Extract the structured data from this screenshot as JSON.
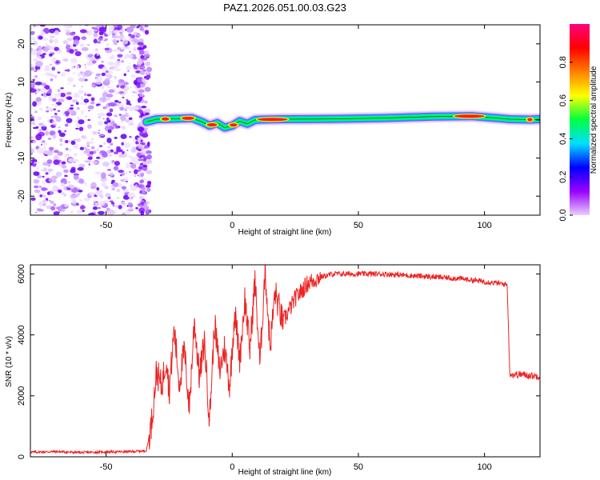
{
  "title": "PAZ1.2026.051.00.03.G23",
  "chart_data": [
    {
      "type": "heatmap",
      "name": "spectrogram",
      "xlabel": "Height of straight line (km)",
      "ylabel": "Frequency (Hz)",
      "xlim": [
        -80,
        122
      ],
      "ylim": [
        -25,
        25
      ],
      "xticks": [
        -50,
        0,
        50,
        100
      ],
      "xtick_labels": [
        "-50",
        "0",
        "50",
        "100"
      ],
      "yticks": [
        -20,
        -10,
        0,
        10,
        20
      ],
      "ytick_labels": [
        "-20",
        "-10",
        "0",
        "10",
        "20"
      ],
      "noise_region_x": [
        -80,
        -34
      ],
      "ridge_path": [
        [
          -34,
          -0.5
        ],
        [
          -30,
          0.2
        ],
        [
          -24,
          0.3
        ],
        [
          -20,
          0.4
        ],
        [
          -16,
          0.5
        ],
        [
          -12,
          -0.5
        ],
        [
          -9,
          -1.5
        ],
        [
          -6,
          -0.8
        ],
        [
          -3,
          -2
        ],
        [
          0,
          -1.5
        ],
        [
          3,
          -0.3
        ],
        [
          6,
          -1
        ],
        [
          9,
          0
        ],
        [
          12,
          0.1
        ],
        [
          20,
          0.2
        ],
        [
          40,
          0.3
        ],
        [
          60,
          0.5
        ],
        [
          80,
          0.9
        ],
        [
          95,
          1.0
        ],
        [
          105,
          0.5
        ],
        [
          110,
          0.2
        ],
        [
          118,
          0.1
        ],
        [
          122,
          0.2
        ]
      ],
      "ridge_hot_segments": [
        [
          -28,
          -25
        ],
        [
          -20,
          -15
        ],
        [
          -10,
          -6
        ],
        [
          -1,
          2
        ],
        [
          10,
          22
        ],
        [
          88,
          100
        ],
        [
          117,
          119
        ]
      ],
      "colorbar": {
        "label": "Normalized spectral amplitude",
        "range": [
          0,
          1
        ],
        "ticks": [
          0.0,
          0.2,
          0.4,
          0.6,
          0.8
        ],
        "tick_labels": [
          "0.0",
          "0.2",
          "0.4",
          "0.6",
          "0.8"
        ],
        "stops": [
          "#e8d0ff",
          "#9900ff",
          "#0000ff",
          "#00e0ff",
          "#00ff40",
          "#ffff00",
          "#ff8000",
          "#ff0000",
          "#ff0080"
        ]
      }
    },
    {
      "type": "line",
      "name": "snr",
      "xlabel": "Height of straight line (km)",
      "ylabel": "SNR (10 * v/v)",
      "xlim": [
        -80,
        122
      ],
      "ylim": [
        0,
        6300
      ],
      "xticks": [
        -50,
        0,
        50,
        100
      ],
      "xtick_labels": [
        "-50",
        "0",
        "50",
        "100"
      ],
      "yticks": [
        0,
        2000,
        4000,
        6000
      ],
      "ytick_labels": [
        "0",
        "2000",
        "4000",
        "6000"
      ],
      "color": "#ee2222",
      "x": [
        -80,
        -70,
        -60,
        -50,
        -40,
        -34,
        -32,
        -30,
        -28,
        -26,
        -25,
        -23,
        -21,
        -19,
        -17,
        -15,
        -13,
        -11,
        -9,
        -7,
        -5,
        -3,
        -1,
        1,
        3,
        5,
        7,
        9,
        11,
        13,
        15,
        17,
        20,
        25,
        30,
        35,
        40,
        50,
        60,
        70,
        80,
        90,
        100,
        105,
        109,
        110,
        111,
        115,
        120,
        122
      ],
      "y": [
        150,
        170,
        140,
        160,
        170,
        200,
        1100,
        2800,
        2300,
        3300,
        2100,
        4200,
        2400,
        3500,
        1600,
        4500,
        2600,
        3800,
        1200,
        4400,
        2800,
        3600,
        2300,
        4800,
        3200,
        5200,
        3500,
        5800,
        3000,
        6200,
        3600,
        5400,
        4400,
        5200,
        5700,
        5900,
        6000,
        6000,
        6000,
        5950,
        5900,
        5850,
        5750,
        5700,
        5650,
        2750,
        2700,
        2700,
        2650,
        2650
      ]
    }
  ]
}
